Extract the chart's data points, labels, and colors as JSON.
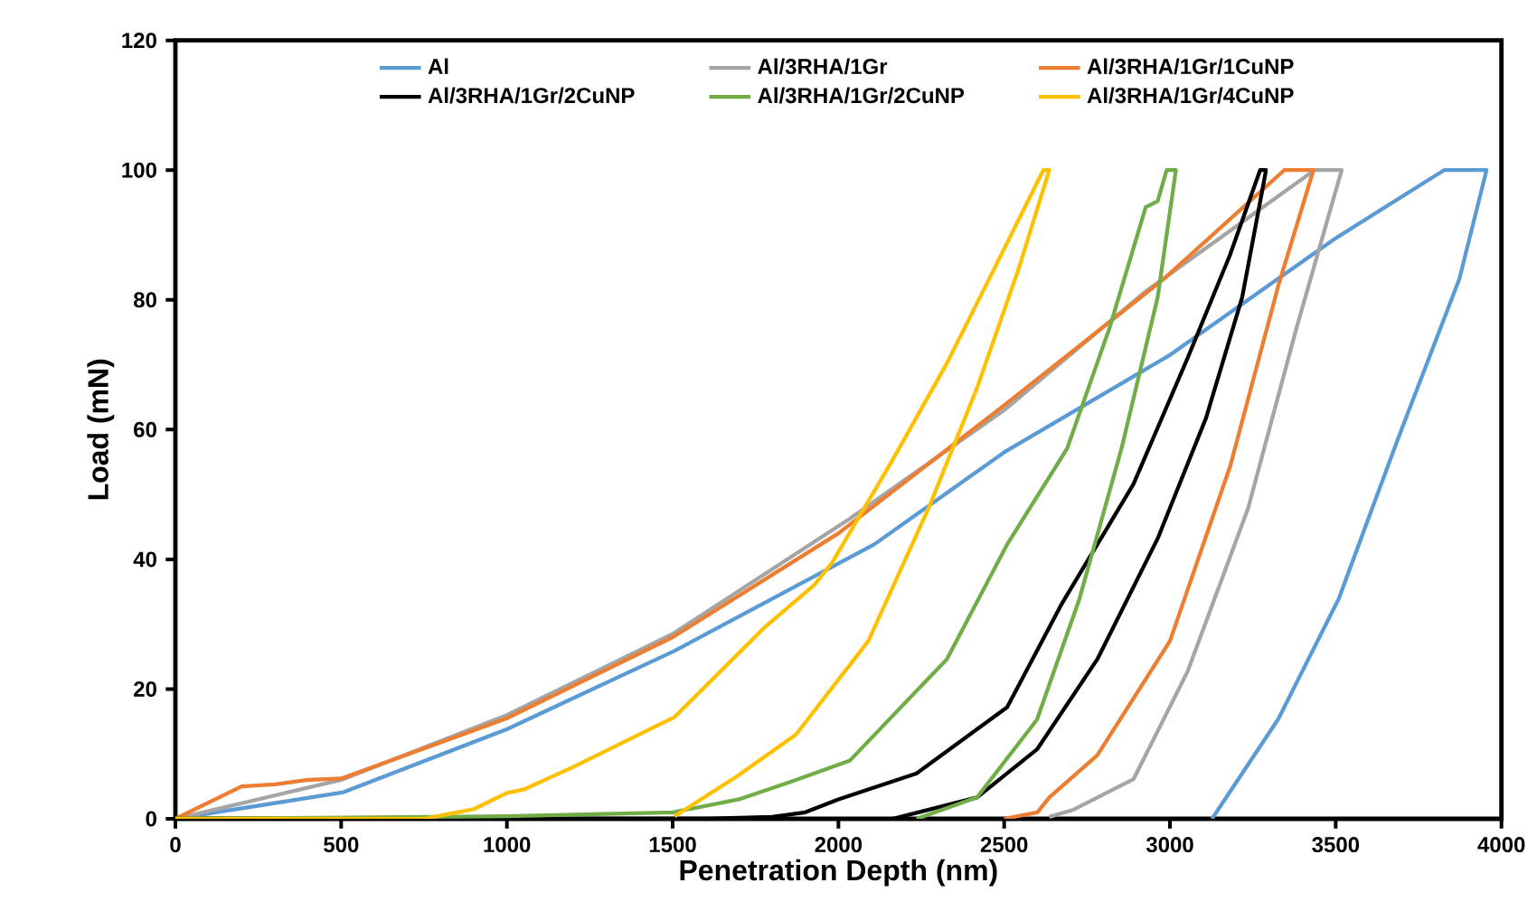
{
  "chart_data": {
    "type": "line",
    "xlabel": "Penetration Depth (nm)",
    "ylabel": "Load (mN)",
    "xlim": [
      0,
      4000
    ],
    "xticks": [
      0,
      500,
      1000,
      1500,
      2000,
      2500,
      3000,
      3500,
      4000
    ],
    "ylim": [
      0,
      120
    ],
    "yticks": [
      0,
      20,
      40,
      60,
      80,
      100,
      120
    ],
    "grid": false,
    "legend": "top",
    "marker": "none",
    "line_style": "solid",
    "series": [
      {
        "name": "Al",
        "color": "#5b9bd5",
        "x": [
          0,
          507,
          999,
          1506,
          2035,
          2108,
          2500,
          3000,
          3500,
          3827,
          3955,
          3873,
          3691,
          3509,
          3327,
          3127
        ],
        "values": [
          0,
          4.1,
          13.8,
          25.9,
          40.3,
          42.3,
          56.5,
          71.5,
          89.5,
          100,
          100,
          83.2,
          59,
          33.9,
          15.4,
          0
        ]
      },
      {
        "name": "Al/3RHA/1Gr",
        "color": "#a5a5a5",
        "x": [
          0,
          500,
          1000,
          1500,
          2035,
          2500,
          2927,
          3436,
          3518,
          3382,
          3236,
          3054,
          2890,
          2709,
          2636
        ],
        "values": [
          0,
          6,
          16,
          28.5,
          46.3,
          63,
          81.3,
          100,
          100,
          75.7,
          47.9,
          22.8,
          6.1,
          1.4,
          0.3
        ]
      },
      {
        "name": "Al/3RHA/1Gr/1CuNP",
        "color": "#ed7d31",
        "x": [
          0,
          200,
          300,
          400,
          500,
          1000,
          1500,
          2000,
          2509,
          2981,
          3345,
          3433,
          3327,
          3182,
          3000,
          2781,
          2636,
          2600,
          2500
        ],
        "values": [
          0,
          5,
          5.3,
          6,
          6.2,
          15.5,
          28,
          44,
          64.1,
          83.2,
          100,
          100,
          82.2,
          54.4,
          27.4,
          9.8,
          3.3,
          1,
          0
        ]
      },
      {
        "name": "Al/3RHA/1Gr/2CuNP",
        "color": "#000000",
        "x": [
          0,
          1600,
          1800,
          1900,
          2000,
          2236,
          2509,
          2672,
          2890,
          3054,
          3181,
          3272,
          3290,
          3218,
          3109,
          2963,
          2781,
          2599,
          2418,
          2163
        ],
        "values": [
          0,
          0,
          0.3,
          1,
          3,
          7,
          17.2,
          33,
          51.6,
          71.1,
          86.9,
          100,
          100,
          80.4,
          61.8,
          43.2,
          24.6,
          10.7,
          3.3,
          0
        ]
      },
      {
        "name": "Al/3RHA/1Gr/2CuNP",
        "color": "#70ad47",
        "x": [
          0,
          1000,
          1500,
          1700,
          1872,
          2035,
          2327,
          2509,
          2690,
          2818,
          2927,
          2963,
          2990,
          3018,
          2963,
          2854,
          2727,
          2599,
          2418,
          2236
        ],
        "values": [
          0,
          0.4,
          1,
          3,
          6,
          9,
          24.6,
          42.3,
          57.1,
          75.7,
          94.3,
          95.2,
          100,
          100,
          80.4,
          57.1,
          33.9,
          15.3,
          3.3,
          0
        ]
      },
      {
        "name": "Al/3RHA/1Gr/4CuNP",
        "color": "#ffc000",
        "x": [
          0,
          750,
          900,
          1000,
          1050,
          1200,
          1506,
          1779,
          1926,
          1981,
          2163,
          2327,
          2472,
          2618,
          2636,
          2545,
          2418,
          2272,
          2090,
          1872,
          1690,
          1506
        ],
        "values": [
          0,
          0,
          1.5,
          4,
          4.5,
          8,
          15.7,
          29.6,
          36,
          39.5,
          55.3,
          70.2,
          85,
          100,
          100,
          85,
          66.4,
          47.9,
          27.4,
          13,
          6.4,
          0.4
        ]
      }
    ]
  }
}
